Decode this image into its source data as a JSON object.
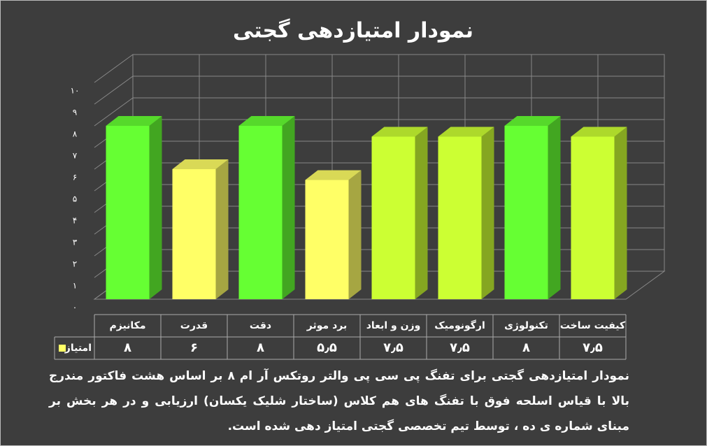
{
  "chart_data": {
    "type": "bar",
    "title": "نمودار امتیازدهی گجتی",
    "categories": [
      "مکانیزم",
      "قدرت",
      "دقت",
      "برد موثر",
      "وزن و ابعاد",
      "ارگونومیک",
      "تکنولوژی",
      "کیفیت ساخت"
    ],
    "series": [
      {
        "name": "امتیاز",
        "color": "#ffff66",
        "values": [
          8,
          6,
          8,
          5.5,
          7.5,
          7.5,
          8,
          7.5
        ],
        "value_labels": [
          "۸",
          "۶",
          "۸",
          "۵٫۵",
          "۷٫۵",
          "۷٫۵",
          "۸",
          "۷٫۵"
        ],
        "colors": [
          "#66ff33",
          "#ffff66",
          "#66ff33",
          "#ffff66",
          "#ccff33",
          "#ccff33",
          "#66ff33",
          "#ccff33"
        ]
      }
    ],
    "ylim": [
      0,
      10
    ],
    "yticks": [
      {
        "value": 0,
        "label": "۰"
      },
      {
        "value": 1,
        "label": "۱"
      },
      {
        "value": 2,
        "label": "۲"
      },
      {
        "value": 3,
        "label": "۳"
      },
      {
        "value": 4,
        "label": "۴"
      },
      {
        "value": 5,
        "label": "۵"
      },
      {
        "value": 6,
        "label": "۶"
      },
      {
        "value": 7,
        "label": "۷"
      },
      {
        "value": 8,
        "label": "۸"
      },
      {
        "value": 9,
        "label": "۹"
      },
      {
        "value": 10,
        "label": "۱۰"
      }
    ],
    "grid": true
  },
  "caption": "نمودار امتیازدهی گجتی برای تفنگ پی سی پی والتر روتکس آر ام ۸ بر اساس هشت فاکتور مندرج بالا با قیاس اسلحه فوق با تفنگ های هم کلاس (ساختار شلیک یکسان) ارزیابی و در هر بخش بر مبنای شماره ی ده ، توسط تیم تخصصی گجتی امتیاز دهی شده است."
}
